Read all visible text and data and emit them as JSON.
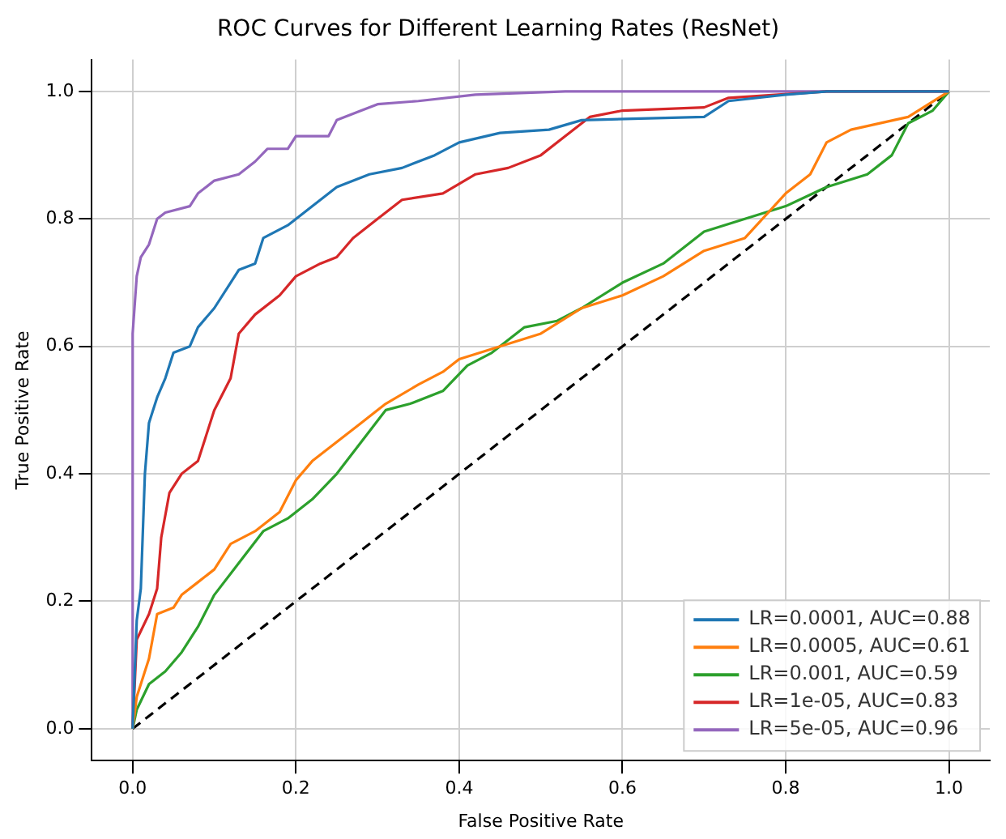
{
  "chart_data": {
    "type": "line",
    "title": "ROC Curves for Different Learning Rates (ResNet)",
    "xlabel": "False Positive Rate",
    "ylabel": "True Positive Rate",
    "xlim": [
      -0.05,
      1.05
    ],
    "ylim": [
      -0.05,
      1.05
    ],
    "xticks": [
      {
        "value": 0,
        "label": "0.0"
      },
      {
        "value": 0.2,
        "label": "0.2"
      },
      {
        "value": 0.4,
        "label": "0.4"
      },
      {
        "value": 0.6,
        "label": "0.6"
      },
      {
        "value": 0.8,
        "label": "0.8"
      },
      {
        "value": 1,
        "label": "1.0"
      }
    ],
    "yticks": [
      {
        "value": 0,
        "label": "0.0"
      },
      {
        "value": 0.2,
        "label": "0.2"
      },
      {
        "value": 0.4,
        "label": "0.4"
      },
      {
        "value": 0.6,
        "label": "0.6"
      },
      {
        "value": 0.8,
        "label": "0.8"
      },
      {
        "value": 1,
        "label": "1.0"
      }
    ],
    "grid": true,
    "legend": "bottom right",
    "marker": "none",
    "series": [
      {
        "name": "LR=0.0001, AUC=0.88",
        "color": "#1f77b4",
        "x": [
          0,
          0.005,
          0.01,
          0.015,
          0.02,
          0.03,
          0.04,
          0.05,
          0.07,
          0.08,
          0.1,
          0.12,
          0.13,
          0.15,
          0.16,
          0.19,
          0.21,
          0.23,
          0.25,
          0.29,
          0.33,
          0.37,
          0.4,
          0.45,
          0.51,
          0.55,
          0.7,
          0.73,
          0.8,
          0.85,
          1
        ],
        "values": [
          0,
          0.17,
          0.22,
          0.4,
          0.48,
          0.52,
          0.55,
          0.59,
          0.6,
          0.63,
          0.66,
          0.7,
          0.72,
          0.73,
          0.77,
          0.79,
          0.81,
          0.83,
          0.85,
          0.87,
          0.88,
          0.9,
          0.92,
          0.935,
          0.94,
          0.955,
          0.96,
          0.985,
          0.995,
          1,
          1
        ]
      },
      {
        "name": "LR=0.0005, AUC=0.61",
        "color": "#ff7f0e",
        "x": [
          0,
          0.005,
          0.02,
          0.03,
          0.05,
          0.06,
          0.08,
          0.1,
          0.12,
          0.15,
          0.18,
          0.2,
          0.22,
          0.25,
          0.28,
          0.31,
          0.35,
          0.38,
          0.4,
          0.45,
          0.5,
          0.55,
          0.6,
          0.65,
          0.7,
          0.75,
          0.8,
          0.83,
          0.85,
          0.88,
          0.95,
          1
        ],
        "values": [
          0,
          0.05,
          0.11,
          0.18,
          0.19,
          0.21,
          0.23,
          0.25,
          0.29,
          0.31,
          0.34,
          0.39,
          0.42,
          0.45,
          0.48,
          0.51,
          0.54,
          0.56,
          0.58,
          0.6,
          0.62,
          0.66,
          0.68,
          0.71,
          0.75,
          0.77,
          0.84,
          0.87,
          0.92,
          0.94,
          0.96,
          1
        ]
      },
      {
        "name": "LR=0.001, AUC=0.59",
        "color": "#2ca02c",
        "x": [
          0,
          0.005,
          0.02,
          0.04,
          0.06,
          0.08,
          0.1,
          0.13,
          0.16,
          0.19,
          0.22,
          0.25,
          0.28,
          0.31,
          0.34,
          0.38,
          0.41,
          0.44,
          0.48,
          0.52,
          0.55,
          0.6,
          0.65,
          0.7,
          0.75,
          0.8,
          0.85,
          0.9,
          0.93,
          0.95,
          0.98,
          1
        ],
        "values": [
          0,
          0.03,
          0.07,
          0.09,
          0.12,
          0.16,
          0.21,
          0.26,
          0.31,
          0.33,
          0.36,
          0.4,
          0.45,
          0.5,
          0.51,
          0.53,
          0.57,
          0.59,
          0.63,
          0.64,
          0.66,
          0.7,
          0.73,
          0.78,
          0.8,
          0.82,
          0.85,
          0.87,
          0.9,
          0.95,
          0.97,
          1
        ]
      },
      {
        "name": "LR=1e-05, AUC=0.83",
        "color": "#d62728",
        "x": [
          0,
          0.005,
          0.02,
          0.03,
          0.035,
          0.045,
          0.06,
          0.08,
          0.09,
          0.1,
          0.12,
          0.13,
          0.15,
          0.18,
          0.2,
          0.23,
          0.25,
          0.27,
          0.3,
          0.33,
          0.38,
          0.42,
          0.46,
          0.5,
          0.53,
          0.56,
          0.6,
          0.7,
          0.73,
          0.85,
          1
        ],
        "values": [
          0,
          0.14,
          0.18,
          0.22,
          0.3,
          0.37,
          0.4,
          0.42,
          0.46,
          0.5,
          0.55,
          0.62,
          0.65,
          0.68,
          0.71,
          0.73,
          0.74,
          0.77,
          0.8,
          0.83,
          0.84,
          0.87,
          0.88,
          0.9,
          0.93,
          0.96,
          0.97,
          0.975,
          0.99,
          1,
          1
        ]
      },
      {
        "name": "LR=5e-05, AUC=0.96",
        "color": "#9467bd",
        "x": [
          0,
          0,
          0.005,
          0.01,
          0.02,
          0.03,
          0.04,
          0.07,
          0.08,
          0.1,
          0.13,
          0.15,
          0.165,
          0.19,
          0.2,
          0.24,
          0.25,
          0.28,
          0.3,
          0.35,
          0.42,
          0.53,
          1
        ],
        "values": [
          0,
          0.62,
          0.71,
          0.74,
          0.76,
          0.8,
          0.81,
          0.82,
          0.84,
          0.86,
          0.87,
          0.89,
          0.91,
          0.91,
          0.93,
          0.93,
          0.955,
          0.97,
          0.98,
          0.985,
          0.995,
          1,
          1
        ]
      },
      {
        "color": "#000000",
        "line_style": "dashed",
        "x": [
          0,
          1
        ],
        "values": [
          0,
          1
        ]
      }
    ]
  }
}
